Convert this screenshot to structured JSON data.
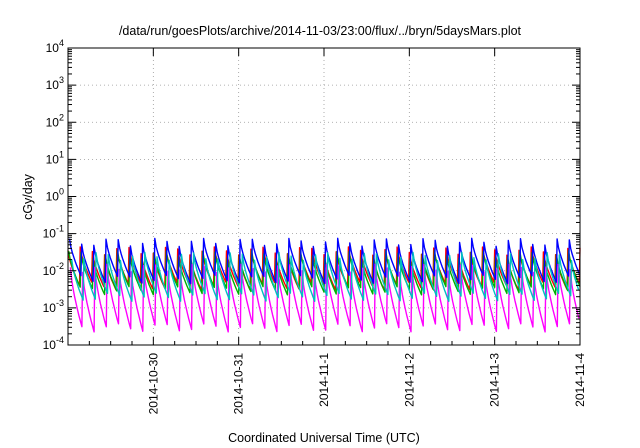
{
  "chart_data": {
    "type": "line",
    "title": "/data/run/goesPlots/archive/2014-11-03/23:00/flux/../bryn/5daysMars.plot",
    "xlabel": "Coordinated Universal Time (UTC)",
    "ylabel": "cGy/day",
    "yscale": "log",
    "ylim": [
      0.0001,
      10000
    ],
    "y_ticks": [
      {
        "base": "10",
        "exp": "-4",
        "value": 0.0001
      },
      {
        "base": "10",
        "exp": "-3",
        "value": 0.001
      },
      {
        "base": "10",
        "exp": "-2",
        "value": 0.01
      },
      {
        "base": "10",
        "exp": "-1",
        "value": 0.1
      },
      {
        "base": "10",
        "exp": "0",
        "value": 1
      },
      {
        "base": "10",
        "exp": "1",
        "value": 10
      },
      {
        "base": "10",
        "exp": "2",
        "value": 100
      },
      {
        "base": "10",
        "exp": "3",
        "value": 1000
      },
      {
        "base": "10",
        "exp": "4",
        "value": 10000
      }
    ],
    "xlim": [
      "2014-10-29T00:00",
      "2014-11-04T00:00"
    ],
    "x_ticks": [
      "2014-10-30",
      "2014-10-31",
      "2014-11-1",
      "2014-11-2",
      "2014-11-3",
      "2014-11-4"
    ],
    "grid": true,
    "legend": "none",
    "series": [
      {
        "color": "#ff0000",
        "peak": 0.035,
        "trough": 0.004,
        "phase": 0.0
      },
      {
        "color": "#00b000",
        "peak": 0.028,
        "trough": 0.003,
        "phase": 0.06
      },
      {
        "color": "#0000ff",
        "peak": 0.06,
        "trough": 0.006,
        "phase": 0.12
      },
      {
        "color": "#ff00ff",
        "peak": 0.012,
        "trough": 0.0003,
        "phase": 0.2
      },
      {
        "color": "#00c0c0",
        "peak": 0.025,
        "trough": 0.002,
        "phase": 0.3
      }
    ]
  }
}
